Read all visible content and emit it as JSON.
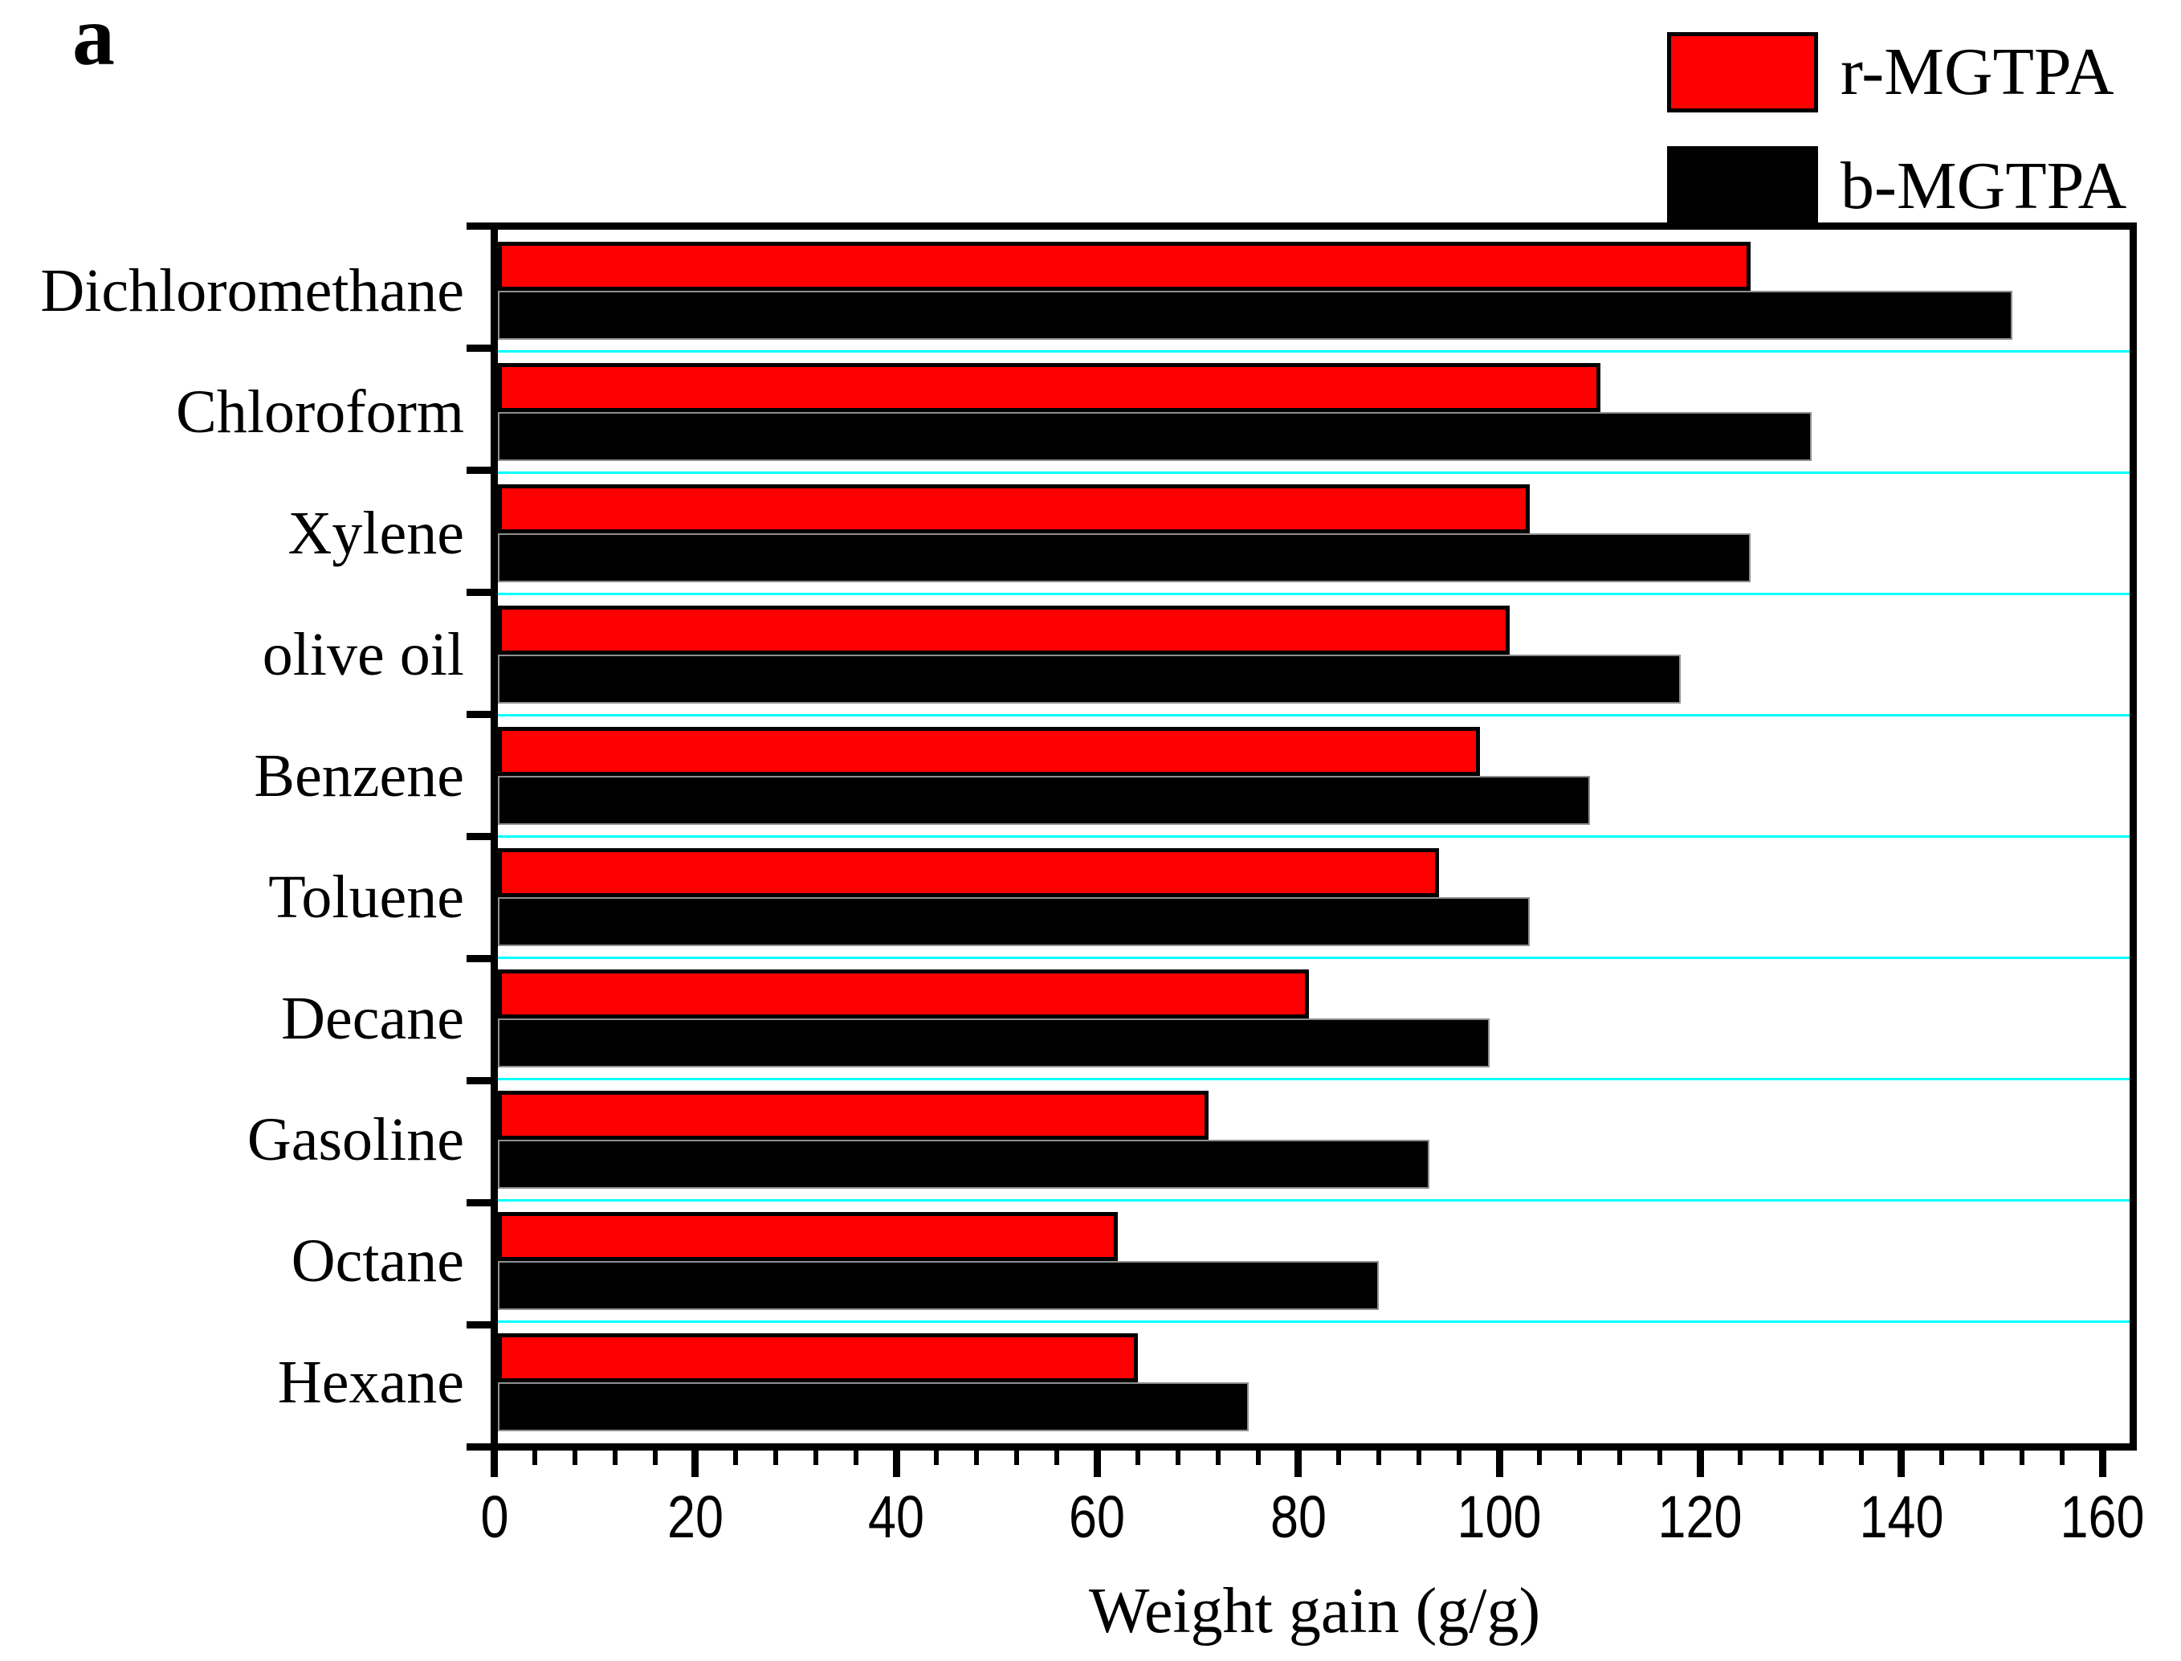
{
  "panel_label": "a",
  "legend": {
    "position": "top-right",
    "items": [
      {
        "label": "r-MGTPA",
        "color": "#ff0000",
        "swatch": "red-filled-rect-black-outline"
      },
      {
        "label": "b-MGTPA",
        "color": "#000000",
        "swatch": "black-filled-rect"
      }
    ]
  },
  "chart_data": {
    "type": "bar",
    "orientation": "horizontal",
    "title": "",
    "xlabel": "Weight gain (g/g)",
    "ylabel": "",
    "categories": [
      "Dichloromethane",
      "Chloroform",
      "Xylene",
      "olive oil",
      "Benzene",
      "Toluene",
      "Decane",
      "Gasoline",
      "Octane",
      "Hexane"
    ],
    "series": [
      {
        "name": "r-MGTPA",
        "color": "#ff0000",
        "values": [
          125,
          110,
          103,
          101,
          98,
          94,
          81,
          71,
          62,
          64
        ]
      },
      {
        "name": "b-MGTPA",
        "color": "#000000",
        "values": [
          151,
          131,
          125,
          118,
          109,
          103,
          99,
          93,
          88,
          75
        ]
      }
    ],
    "xlim": [
      0,
      160
    ],
    "x_major_ticks": [
      0,
      20,
      40,
      60,
      80,
      100,
      120,
      140,
      160
    ],
    "x_minor_tick_interval": 4,
    "grid": "cyan horizontal separator line between each category",
    "gridline_color": "#00ffff",
    "axis_color": "#000000",
    "plot_background": "#ffffff",
    "legend_position": "top-right outside plot"
  }
}
